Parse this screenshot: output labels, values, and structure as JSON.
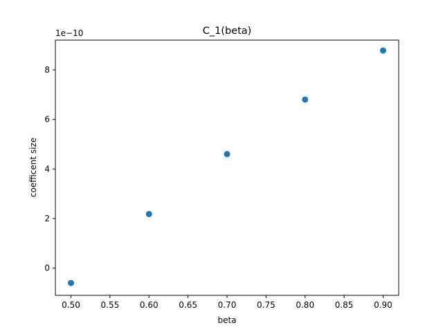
{
  "chart_data": {
    "type": "scatter",
    "title": "C_1(beta)",
    "xlabel": "beta",
    "ylabel": "coefficent size",
    "y_offset_label": "1e−10",
    "xlim": [
      0.48,
      0.92
    ],
    "ylim": [
      -1.1,
      9.2
    ],
    "xticks": [
      0.5,
      0.55,
      0.6,
      0.65,
      0.7,
      0.75,
      0.8,
      0.85,
      0.9
    ],
    "xtick_labels": [
      "0.50",
      "0.55",
      "0.60",
      "0.65",
      "0.70",
      "0.75",
      "0.80",
      "0.85",
      "0.90"
    ],
    "yticks": [
      0,
      2,
      4,
      6,
      8
    ],
    "ytick_labels": [
      "0",
      "2",
      "4",
      "6",
      "8"
    ],
    "grid": false,
    "colors": {
      "marker": "#1f77b4",
      "axes": "#000000",
      "background": "#ffffff"
    },
    "series": [
      {
        "x": [
          0.5,
          0.6,
          0.7,
          0.8,
          0.9
        ],
        "y": [
          -0.6,
          2.18,
          4.6,
          6.8,
          8.78
        ]
      }
    ]
  }
}
